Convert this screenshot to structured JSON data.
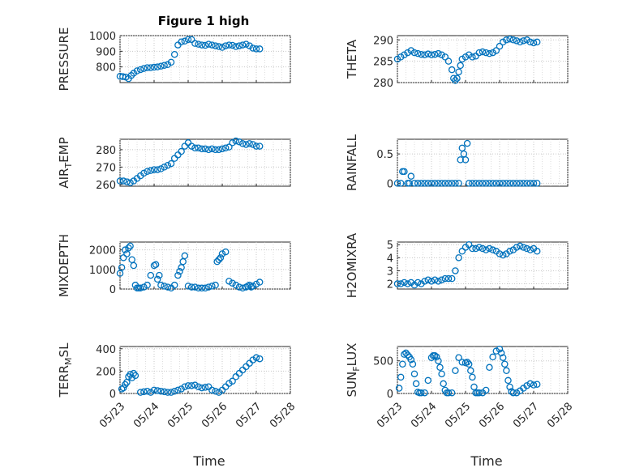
{
  "title": "Figure 1 high",
  "marker_color": "#0072BD",
  "chart_data": [
    {
      "id": "pressure",
      "type": "scatter",
      "ylabel": "PRESSURE",
      "ylabel_main": "PRESSURE",
      "ylabel_sub": "",
      "ylabel_rest": "",
      "ylim": [
        700,
        1000
      ],
      "yticks": [
        800,
        900,
        1000
      ],
      "ytick_labels": [
        "800",
        "900",
        "1000"
      ],
      "xlim": [
        0,
        5
      ],
      "xticks": [
        0,
        1,
        2,
        3,
        4,
        5
      ],
      "xtick_labels": [
        "05/23",
        "05/24",
        "05/25",
        "05/26",
        "05/27",
        "05/28"
      ],
      "xlabel": "",
      "x": [
        0.0,
        0.08,
        0.17,
        0.25,
        0.33,
        0.4,
        0.5,
        0.6,
        0.7,
        0.8,
        0.9,
        1.0,
        1.1,
        1.2,
        1.3,
        1.4,
        1.5,
        1.6,
        1.7,
        1.8,
        1.9,
        2.0,
        2.1,
        2.2,
        2.3,
        2.4,
        2.5,
        2.6,
        2.7,
        2.8,
        2.9,
        3.0,
        3.1,
        3.2,
        3.3,
        3.4,
        3.5,
        3.6,
        3.7,
        3.8,
        3.9,
        4.0,
        4.1
      ],
      "y": [
        740,
        738,
        735,
        725,
        745,
        760,
        775,
        783,
        790,
        795,
        795,
        798,
        800,
        805,
        810,
        815,
        830,
        880,
        940,
        960,
        965,
        975,
        975,
        950,
        945,
        940,
        938,
        945,
        940,
        935,
        930,
        925,
        935,
        940,
        938,
        930,
        935,
        940,
        945,
        935,
        920,
        915,
        915
      ]
    },
    {
      "id": "theta",
      "type": "scatter",
      "ylabel": "THETA",
      "ylabel_main": "THETA",
      "ylabel_sub": "",
      "ylabel_rest": "",
      "ylim": [
        280,
        291
      ],
      "yticks": [
        280,
        285,
        290
      ],
      "ytick_labels": [
        "280",
        "285",
        "290"
      ],
      "xlim": [
        0,
        5
      ],
      "xticks": [
        0,
        1,
        2,
        3,
        4,
        5
      ],
      "xtick_labels": [
        "05/23",
        "05/24",
        "05/25",
        "05/26",
        "05/27",
        "05/28"
      ],
      "xlabel": "",
      "x": [
        0.0,
        0.1,
        0.2,
        0.3,
        0.4,
        0.5,
        0.6,
        0.7,
        0.8,
        0.9,
        1.0,
        1.1,
        1.2,
        1.3,
        1.4,
        1.5,
        1.6,
        1.65,
        1.7,
        1.75,
        1.8,
        1.85,
        1.9,
        2.0,
        2.1,
        2.2,
        2.3,
        2.4,
        2.5,
        2.6,
        2.7,
        2.8,
        2.9,
        3.0,
        3.1,
        3.2,
        3.3,
        3.4,
        3.5,
        3.6,
        3.7,
        3.8,
        3.9,
        4.0,
        4.1
      ],
      "y": [
        285.5,
        286.0,
        286.5,
        287.0,
        287.5,
        287.0,
        286.8,
        286.6,
        286.5,
        286.7,
        286.5,
        286.6,
        286.8,
        286.5,
        286.0,
        285.0,
        283.0,
        281.0,
        280.5,
        281.0,
        282.5,
        284.0,
        285.5,
        286.0,
        286.5,
        286.0,
        286.2,
        287.0,
        287.2,
        287.0,
        286.8,
        287.0,
        287.5,
        288.5,
        289.5,
        290.0,
        290.2,
        290.0,
        289.8,
        289.5,
        289.8,
        290.0,
        289.5,
        289.3,
        289.5
      ]
    },
    {
      "id": "air_temp",
      "type": "scatter",
      "ylabel": "AIR_TEMP",
      "ylabel_main": "AIR",
      "ylabel_sub": "T",
      "ylabel_rest": "EMP",
      "ylim": [
        259,
        286
      ],
      "yticks": [
        260,
        270,
        280
      ],
      "ytick_labels": [
        "260",
        "270",
        "280"
      ],
      "xlim": [
        0,
        5
      ],
      "xticks": [
        0,
        1,
        2,
        3,
        4,
        5
      ],
      "xtick_labels": [
        "05/23",
        "05/24",
        "05/25",
        "05/26",
        "05/27",
        "05/28"
      ],
      "xlabel": "",
      "x": [
        0.0,
        0.1,
        0.2,
        0.3,
        0.4,
        0.5,
        0.6,
        0.7,
        0.8,
        0.9,
        1.0,
        1.1,
        1.2,
        1.3,
        1.4,
        1.5,
        1.6,
        1.7,
        1.8,
        1.9,
        2.0,
        2.1,
        2.2,
        2.3,
        2.4,
        2.5,
        2.6,
        2.7,
        2.8,
        2.9,
        3.0,
        3.1,
        3.2,
        3.3,
        3.4,
        3.5,
        3.6,
        3.7,
        3.8,
        3.9,
        4.0,
        4.1
      ],
      "y": [
        262,
        262,
        261.5,
        261,
        262,
        263.5,
        265,
        266.5,
        267.5,
        268,
        268.5,
        268.5,
        269,
        270,
        271,
        272,
        275,
        277,
        279,
        282,
        284,
        282,
        281,
        281,
        280.5,
        280.5,
        280,
        280.5,
        280,
        280,
        280.5,
        281,
        281.5,
        284,
        285,
        284.5,
        283.5,
        283,
        283.5,
        283,
        282,
        282
      ]
    },
    {
      "id": "rainfall",
      "type": "scatter",
      "ylabel": "RAINFALL",
      "ylabel_main": "RAINFALL",
      "ylabel_sub": "",
      "ylabel_rest": "",
      "ylim": [
        -0.05,
        0.75
      ],
      "yticks": [
        0,
        0.5
      ],
      "ytick_labels": [
        "0",
        "0.5"
      ],
      "xlim": [
        0,
        5
      ],
      "xticks": [
        0,
        1,
        2,
        3,
        4,
        5
      ],
      "xtick_labels": [
        "05/23",
        "05/24",
        "05/25",
        "05/26",
        "05/27",
        "05/28"
      ],
      "xlabel": "",
      "x": [
        0.0,
        0.1,
        0.15,
        0.2,
        0.3,
        0.35,
        0.4,
        0.5,
        0.6,
        0.7,
        0.8,
        0.9,
        1.0,
        1.1,
        1.2,
        1.3,
        1.4,
        1.5,
        1.6,
        1.7,
        1.8,
        1.85,
        1.9,
        1.95,
        2.0,
        2.05,
        2.1,
        2.2,
        2.3,
        2.4,
        2.5,
        2.6,
        2.7,
        2.8,
        2.9,
        3.0,
        3.1,
        3.2,
        3.3,
        3.4,
        3.5,
        3.6,
        3.7,
        3.8,
        3.9,
        4.0,
        4.1
      ],
      "y": [
        0,
        0,
        0.2,
        0.2,
        0,
        0,
        0.12,
        0,
        0,
        0,
        0,
        0,
        0,
        0,
        0,
        0,
        0,
        0,
        0,
        0,
        0,
        0.4,
        0.6,
        0.5,
        0.4,
        0.68,
        0,
        0,
        0,
        0,
        0,
        0,
        0,
        0,
        0,
        0,
        0,
        0,
        0,
        0,
        0,
        0,
        0,
        0,
        0,
        0,
        0
      ]
    },
    {
      "id": "mixdepth",
      "type": "scatter",
      "ylabel": "MIXDEPTH",
      "ylabel_main": "MIXDEPTH",
      "ylabel_sub": "",
      "ylabel_rest": "",
      "ylim": [
        0,
        2400
      ],
      "yticks": [
        0,
        1000,
        2000
      ],
      "ytick_labels": [
        "0",
        "1000",
        "2000"
      ],
      "xlim": [
        0,
        5
      ],
      "xticks": [
        0,
        1,
        2,
        3,
        4,
        5
      ],
      "xtick_labels": [
        "05/23",
        "05/24",
        "05/25",
        "05/26",
        "05/27",
        "05/28"
      ],
      "xlabel": "",
      "x": [
        0.0,
        0.05,
        0.1,
        0.15,
        0.2,
        0.25,
        0.3,
        0.35,
        0.4,
        0.45,
        0.5,
        0.55,
        0.6,
        0.7,
        0.8,
        0.9,
        1.0,
        1.05,
        1.1,
        1.15,
        1.2,
        1.3,
        1.4,
        1.5,
        1.6,
        1.7,
        1.75,
        1.8,
        1.85,
        1.9,
        2.0,
        2.1,
        2.2,
        2.3,
        2.4,
        2.5,
        2.6,
        2.7,
        2.8,
        2.85,
        2.9,
        2.95,
        3.0,
        3.1,
        3.2,
        3.3,
        3.4,
        3.5,
        3.6,
        3.7,
        3.75,
        3.8,
        3.85,
        3.9,
        4.0,
        4.1
      ],
      "y": [
        800,
        1100,
        1600,
        2000,
        1800,
        2100,
        2200,
        1500,
        1200,
        200,
        50,
        50,
        50,
        100,
        200,
        700,
        1200,
        1250,
        500,
        700,
        200,
        150,
        100,
        50,
        200,
        700,
        900,
        1100,
        1400,
        1700,
        150,
        100,
        100,
        50,
        50,
        50,
        100,
        150,
        200,
        1400,
        1500,
        1600,
        1800,
        1900,
        400,
        300,
        200,
        100,
        50,
        100,
        150,
        200,
        100,
        150,
        250,
        350
      ]
    },
    {
      "id": "h2omixra",
      "type": "scatter",
      "ylabel": "H2OMIXRA",
      "ylabel_main": "H2OMIXRA",
      "ylabel_sub": "",
      "ylabel_rest": "",
      "ylim": [
        1.6,
        5.2
      ],
      "yticks": [
        2,
        3,
        4,
        5
      ],
      "ytick_labels": [
        "2",
        "3",
        "4",
        "5"
      ],
      "xlim": [
        0,
        5
      ],
      "xticks": [
        0,
        1,
        2,
        3,
        4,
        5
      ],
      "xtick_labels": [
        "05/23",
        "05/24",
        "05/25",
        "05/26",
        "05/27",
        "05/28"
      ],
      "xlabel": "",
      "x": [
        0.0,
        0.1,
        0.2,
        0.3,
        0.4,
        0.5,
        0.6,
        0.7,
        0.8,
        0.9,
        1.0,
        1.1,
        1.2,
        1.3,
        1.4,
        1.5,
        1.6,
        1.7,
        1.8,
        1.9,
        2.0,
        2.1,
        2.2,
        2.3,
        2.4,
        2.5,
        2.6,
        2.7,
        2.8,
        2.9,
        3.0,
        3.1,
        3.2,
        3.3,
        3.4,
        3.5,
        3.6,
        3.7,
        3.8,
        3.9,
        4.0,
        4.1
      ],
      "y": [
        2.0,
        2.0,
        2.1,
        2.0,
        2.1,
        1.9,
        2.1,
        2.0,
        2.2,
        2.3,
        2.2,
        2.3,
        2.2,
        2.3,
        2.4,
        2.4,
        2.4,
        3.0,
        4.0,
        4.5,
        4.8,
        5.0,
        4.7,
        4.7,
        4.8,
        4.7,
        4.6,
        4.7,
        4.6,
        4.5,
        4.3,
        4.2,
        4.3,
        4.5,
        4.6,
        4.8,
        4.9,
        4.8,
        4.7,
        4.6,
        4.7,
        4.5
      ]
    },
    {
      "id": "terr_msl",
      "type": "scatter",
      "ylabel": "TERR_MSL",
      "ylabel_main": "TERR",
      "ylabel_sub": "M",
      "ylabel_rest": "SL",
      "ylim": [
        0,
        420
      ],
      "yticks": [
        0,
        200,
        400
      ],
      "ytick_labels": [
        "0",
        "200",
        "400"
      ],
      "xlim": [
        0,
        5
      ],
      "xticks": [
        0,
        1,
        2,
        3,
        4,
        5
      ],
      "xtick_labels": [
        "05/23",
        "05/24",
        "05/25",
        "05/26",
        "05/27",
        "05/28"
      ],
      "xlabel": "Time",
      "x": [
        0.05,
        0.1,
        0.15,
        0.2,
        0.25,
        0.3,
        0.35,
        0.4,
        0.45,
        0.6,
        0.7,
        0.8,
        0.9,
        1.0,
        1.1,
        1.2,
        1.3,
        1.4,
        1.5,
        1.6,
        1.7,
        1.8,
        1.9,
        2.0,
        2.1,
        2.2,
        2.3,
        2.4,
        2.5,
        2.6,
        2.7,
        2.8,
        2.9,
        3.0,
        3.1,
        3.2,
        3.3,
        3.4,
        3.5,
        3.6,
        3.7,
        3.8,
        3.9,
        4.0,
        4.1
      ],
      "y": [
        40,
        50,
        80,
        100,
        150,
        170,
        140,
        180,
        160,
        10,
        15,
        20,
        10,
        30,
        25,
        20,
        15,
        10,
        10,
        20,
        30,
        40,
        60,
        70,
        70,
        75,
        60,
        50,
        55,
        60,
        30,
        20,
        10,
        30,
        60,
        90,
        110,
        150,
        180,
        210,
        240,
        270,
        300,
        320,
        310
      ]
    },
    {
      "id": "sun_flux",
      "type": "scatter",
      "ylabel": "SUN_FLUX",
      "ylabel_main": "SUN",
      "ylabel_sub": "F",
      "ylabel_rest": "LUX",
      "ylim": [
        0,
        720
      ],
      "yticks": [
        0,
        500
      ],
      "ytick_labels": [
        "0",
        "500"
      ],
      "xlim": [
        0,
        5
      ],
      "xticks": [
        0,
        1,
        2,
        3,
        4,
        5
      ],
      "xtick_labels": [
        "05/23",
        "05/24",
        "05/25",
        "05/26",
        "05/27",
        "05/28"
      ],
      "xlabel": "Time",
      "x": [
        0.05,
        0.1,
        0.15,
        0.2,
        0.25,
        0.3,
        0.35,
        0.4,
        0.45,
        0.5,
        0.55,
        0.6,
        0.65,
        0.7,
        0.8,
        0.9,
        1.0,
        1.05,
        1.1,
        1.15,
        1.2,
        1.25,
        1.3,
        1.35,
        1.4,
        1.45,
        1.5,
        1.6,
        1.7,
        1.8,
        1.9,
        2.0,
        2.05,
        2.1,
        2.15,
        2.2,
        2.25,
        2.3,
        2.35,
        2.4,
        2.5,
        2.6,
        2.7,
        2.8,
        2.9,
        3.0,
        3.05,
        3.1,
        3.15,
        3.2,
        3.25,
        3.3,
        3.35,
        3.4,
        3.5,
        3.6,
        3.7,
        3.8,
        3.9,
        4.0,
        4.1
      ],
      "y": [
        80,
        250,
        450,
        600,
        620,
        590,
        560,
        520,
        450,
        300,
        150,
        20,
        10,
        10,
        10,
        200,
        550,
        580,
        580,
        560,
        500,
        400,
        300,
        150,
        50,
        10,
        10,
        10,
        350,
        550,
        480,
        470,
        480,
        450,
        350,
        250,
        100,
        10,
        10,
        10,
        10,
        50,
        400,
        560,
        650,
        680,
        620,
        550,
        450,
        350,
        200,
        100,
        30,
        10,
        10,
        40,
        80,
        120,
        150,
        130,
        140
      ]
    }
  ]
}
